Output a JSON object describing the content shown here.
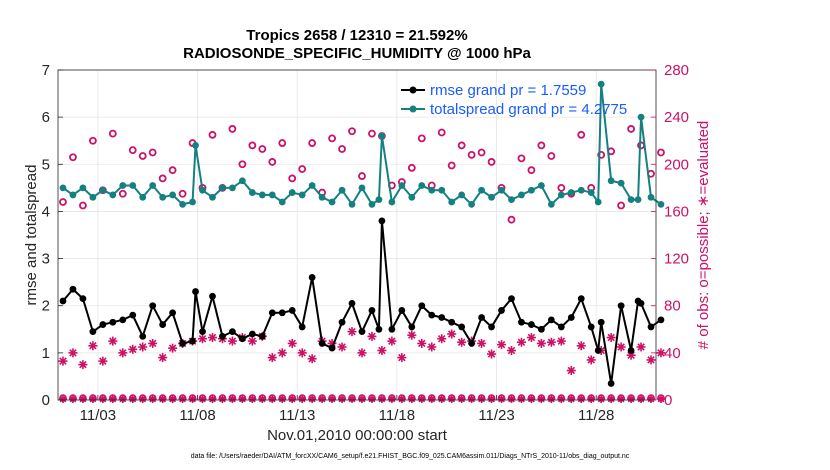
{
  "chart_data": {
    "type": "line",
    "title": "Tropics 2658 / 12310 = 21.592%",
    "subtitle": "RADIOSONDE_SPECIFIC_HUMIDITY @ 1000 hPa",
    "xlabel": "Nov.01,2010 00:00:00 start",
    "ylabel": "rmse and totalspread",
    "ylabel_right": "# of obs: o=possible; ∗=evaluated",
    "footnote": "data file: /Users/raeder/DAI/ATM_forcXX/CAM6_setup/f.e21.FHIST_BGC.f09_025.CAM6assim.011/Diags_NTrS_2010-11/obs_diag_output.nc",
    "xlim": [
      1,
      31
    ],
    "ylim": [
      0,
      7
    ],
    "ylim_right": [
      0,
      280
    ],
    "x_ticks": [
      3,
      8,
      13,
      18,
      23,
      28
    ],
    "x_tick_labels": [
      "11/03",
      "11/08",
      "11/13",
      "11/18",
      "11/23",
      "11/28"
    ],
    "y_ticks": [
      0,
      1,
      2,
      3,
      4,
      5,
      6,
      7
    ],
    "y_tick_labels": [
      "0",
      "1",
      "2",
      "3",
      "4",
      "5",
      "6",
      "7"
    ],
    "y_ticks_right": [
      0,
      40,
      80,
      120,
      160,
      200,
      240,
      280
    ],
    "y_tick_labels_right": [
      "0",
      "40",
      "80",
      "120",
      "160",
      "200",
      "240",
      "280"
    ],
    "colors": {
      "rmse": "#000000",
      "spread": "#14807f",
      "obs": "#cc1166",
      "legend_text": "#1a5cff",
      "grid": "#e6e6e6"
    },
    "series": [
      {
        "name": "rmse grand pr = 1.7559",
        "role": "rmse",
        "x": [
          1.25,
          1.75,
          2.25,
          2.75,
          3.25,
          3.75,
          4.25,
          4.75,
          5.25,
          5.75,
          6.25,
          6.75,
          7.25,
          7.75,
          7.9,
          8.25,
          8.75,
          9.25,
          9.75,
          10.25,
          10.75,
          11.25,
          11.75,
          12.25,
          12.75,
          13.25,
          13.75,
          14.25,
          14.75,
          15.25,
          15.75,
          16.25,
          16.75,
          17.1,
          17.25,
          17.75,
          18.25,
          18.75,
          19.25,
          19.75,
          20.25,
          20.75,
          21.25,
          21.75,
          22.25,
          22.75,
          23.25,
          23.75,
          24.25,
          24.75,
          25.25,
          25.75,
          26.25,
          26.75,
          27.25,
          27.75,
          28.1,
          28.25,
          28.75,
          29.25,
          29.75,
          30.1,
          30.25,
          30.75,
          31.25
        ],
        "y": [
          2.1,
          2.35,
          2.15,
          1.45,
          1.6,
          1.65,
          1.7,
          1.8,
          1.35,
          2.0,
          1.6,
          1.85,
          1.2,
          1.25,
          2.3,
          1.45,
          2.2,
          1.35,
          1.45,
          1.3,
          1.4,
          1.35,
          1.85,
          1.85,
          1.9,
          1.55,
          2.6,
          1.2,
          1.1,
          1.65,
          2.05,
          1.45,
          1.9,
          1.5,
          3.8,
          1.5,
          1.9,
          1.55,
          2.0,
          1.8,
          1.75,
          1.65,
          1.55,
          1.2,
          1.75,
          1.55,
          1.9,
          2.15,
          1.65,
          1.6,
          1.5,
          1.7,
          1.55,
          1.75,
          2.15,
          1.55,
          1.05,
          1.65,
          0.35,
          2.0,
          1.05,
          2.1,
          2.05,
          1.55,
          1.7
        ],
        "marker": "o-filled"
      },
      {
        "name": "totalspread grand pr = 4.2775",
        "role": "spread",
        "x": [
          1.25,
          1.75,
          2.25,
          2.75,
          3.25,
          3.75,
          4.25,
          4.75,
          5.25,
          5.75,
          6.25,
          6.75,
          7.25,
          7.75,
          7.9,
          8.25,
          8.75,
          9.25,
          9.75,
          10.25,
          10.75,
          11.25,
          11.75,
          12.25,
          12.75,
          13.25,
          13.75,
          14.25,
          14.75,
          15.25,
          15.75,
          16.25,
          16.75,
          17.1,
          17.25,
          17.75,
          18.25,
          18.75,
          19.25,
          19.75,
          20.25,
          20.75,
          21.25,
          21.75,
          22.25,
          22.75,
          23.25,
          23.75,
          24.25,
          24.75,
          25.25,
          25.75,
          26.25,
          26.75,
          27.25,
          27.75,
          28.1,
          28.25,
          28.75,
          29.25,
          29.75,
          30.1,
          30.25,
          30.75,
          31.25
        ],
        "y": [
          4.5,
          4.35,
          4.5,
          4.3,
          4.45,
          4.35,
          4.55,
          4.55,
          4.3,
          4.55,
          4.3,
          4.35,
          4.15,
          4.2,
          5.4,
          4.45,
          4.3,
          4.5,
          4.5,
          4.65,
          4.4,
          4.35,
          4.35,
          4.2,
          4.4,
          4.35,
          4.55,
          4.3,
          4.2,
          4.45,
          4.15,
          4.5,
          4.15,
          4.25,
          5.6,
          4.2,
          4.55,
          4.3,
          4.55,
          4.45,
          4.45,
          4.2,
          4.35,
          4.15,
          4.45,
          4.3,
          4.45,
          4.25,
          4.35,
          4.45,
          4.55,
          4.15,
          4.35,
          4.4,
          4.45,
          4.4,
          4.2,
          6.7,
          4.65,
          4.6,
          4.25,
          4.25,
          6.0,
          4.3,
          4.15
        ],
        "marker": "o-filled"
      },
      {
        "name": "obs possible",
        "role": "obs_possible",
        "marker": "o-open",
        "x": [
          1.25,
          1.75,
          2.25,
          2.75,
          3.25,
          3.75,
          4.25,
          4.75,
          5.25,
          5.75,
          6.25,
          6.75,
          7.25,
          7.75,
          8.25,
          8.75,
          9.25,
          9.75,
          10.25,
          10.75,
          11.25,
          11.75,
          12.25,
          12.75,
          13.25,
          13.75,
          14.25,
          14.75,
          15.25,
          15.75,
          16.25,
          16.75,
          17.25,
          17.75,
          18.25,
          18.75,
          19.25,
          19.75,
          20.25,
          20.75,
          21.25,
          21.75,
          22.25,
          22.75,
          23.25,
          23.75,
          24.25,
          24.75,
          25.25,
          25.75,
          26.25,
          26.75,
          27.25,
          27.75,
          28.25,
          28.75,
          29.25,
          29.75,
          30.25,
          30.75,
          31.25
        ],
        "y": [
          168,
          206,
          165,
          220,
          178,
          226,
          175,
          212,
          207,
          210,
          188,
          195,
          175,
          218,
          180,
          225,
          180,
          230,
          200,
          216,
          213,
          202,
          218,
          188,
          196,
          218,
          176,
          222,
          213,
          228,
          190,
          226,
          224,
          182,
          185,
          197,
          222,
          182,
          227,
          199,
          216,
          208,
          210,
          202,
          180,
          153,
          205,
          195,
          216,
          207,
          180,
          175,
          225,
          180,
          208,
          211,
          165,
          230,
          216,
          192,
          210
        ]
      },
      {
        "name": "obs evaluated",
        "role": "obs_evaluated",
        "marker": "asterisk",
        "x": [
          1.25,
          1.75,
          2.25,
          2.75,
          3.25,
          3.75,
          4.25,
          4.75,
          5.25,
          5.75,
          6.25,
          6.75,
          7.25,
          7.75,
          8.25,
          8.75,
          9.25,
          9.75,
          10.25,
          10.75,
          11.25,
          11.75,
          12.25,
          12.75,
          13.25,
          13.75,
          14.25,
          14.75,
          15.25,
          15.75,
          16.25,
          16.75,
          17.25,
          17.75,
          18.25,
          18.75,
          19.25,
          19.75,
          20.25,
          20.75,
          21.25,
          21.75,
          22.25,
          22.75,
          23.25,
          23.75,
          24.25,
          24.75,
          25.25,
          25.75,
          26.25,
          26.75,
          27.25,
          27.75,
          28.25,
          28.75,
          29.25,
          29.75,
          30.25,
          30.75,
          31.25
        ],
        "y": [
          33,
          40,
          30,
          46,
          33,
          50,
          40,
          43,
          45,
          48,
          36,
          44,
          48,
          50,
          52,
          53,
          52,
          50,
          53,
          50,
          54,
          36,
          40,
          48,
          40,
          35,
          50,
          48,
          45,
          58,
          40,
          54,
          42,
          50,
          36,
          55,
          48,
          45,
          52,
          56,
          49,
          50,
          48,
          39,
          47,
          42,
          49,
          53,
          48,
          49,
          50,
          25,
          46,
          34,
          42,
          53,
          45,
          38,
          45,
          34,
          40
        ]
      }
    ],
    "obs_zero_row_note": "both obs markers also sit along 0 on the right axis"
  }
}
